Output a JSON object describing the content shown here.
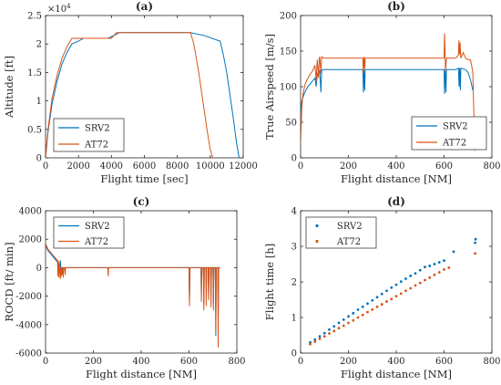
{
  "colors": {
    "SRV2": "#0072BD",
    "AT72": "#D95319"
  },
  "chart_data": [
    {
      "panel": "(a)",
      "type": "line",
      "xlabel": "Flight time [sec]",
      "ylabel": "Altitude [ft]",
      "exponent_label": "×10",
      "exponent_power": "4",
      "xlim": [
        0,
        12000
      ],
      "ylim": [
        0,
        2.5
      ],
      "xticks": [
        "0",
        "2000",
        "4000",
        "6000",
        "8000",
        "10000",
        "12000"
      ],
      "yticks": [
        "0",
        "0.5",
        "1",
        "1.5",
        "2",
        "2.5"
      ],
      "legend": [
        "SRV2",
        "AT72"
      ],
      "legend_position": "bottom-left",
      "series": [
        {
          "name": "SRV2",
          "x": [
            0,
            150,
            400,
            700,
            1000,
            1300,
            1600,
            2000,
            2300,
            3800,
            4500,
            8800,
            9600,
            10600,
            10800,
            11000,
            11200,
            11400,
            11600,
            11750
          ],
          "y": [
            0,
            0.45,
            0.95,
            1.35,
            1.65,
            1.85,
            2.0,
            2.05,
            2.1,
            2.1,
            2.2,
            2.2,
            2.15,
            2.05,
            1.8,
            1.5,
            1.1,
            0.7,
            0.25,
            0
          ]
        },
        {
          "name": "AT72",
          "x": [
            0,
            150,
            400,
            700,
            1000,
            1300,
            1600,
            2000,
            4000,
            4300,
            8800,
            9000,
            9300,
            9600,
            9800,
            10000,
            10150
          ],
          "y": [
            0,
            0.5,
            1.05,
            1.45,
            1.75,
            1.95,
            2.1,
            2.1,
            2.1,
            2.2,
            2.2,
            2.0,
            1.5,
            0.9,
            0.5,
            0.15,
            0
          ]
        }
      ]
    },
    {
      "panel": "(b)",
      "type": "line",
      "xlabel": "Flight distance [NM]",
      "ylabel": "True Airspeed [m/s]",
      "xlim": [
        0,
        800
      ],
      "ylim": [
        0,
        200
      ],
      "xticks": [
        "0",
        "200",
        "400",
        "600",
        "800"
      ],
      "yticks": [
        "0",
        "50",
        "100",
        "150",
        "200"
      ],
      "legend": [
        "SRV2",
        "AT72"
      ],
      "legend_position": "bottom-right",
      "series": [
        {
          "name": "SRV2",
          "x": [
            0,
            5,
            15,
            30,
            50,
            60,
            65,
            68,
            70,
            80,
            85,
            88,
            92,
            100,
            260,
            263,
            265,
            268,
            270,
            600,
            602,
            605,
            608,
            610,
            650,
            660,
            663,
            665,
            668,
            670,
            690,
            700,
            710,
            720
          ],
          "y": [
            60,
            80,
            90,
            100,
            108,
            112,
            100,
            112,
            118,
            122,
            92,
            122,
            124,
            124,
            124,
            92,
            124,
            95,
            124,
            124,
            90,
            124,
            92,
            124,
            124,
            126,
            100,
            126,
            95,
            126,
            124,
            120,
            110,
            95
          ]
        },
        {
          "name": "AT72",
          "x": [
            0,
            5,
            10,
            20,
            35,
            50,
            60,
            65,
            68,
            70,
            75,
            78,
            80,
            85,
            88,
            90,
            95,
            100,
            260,
            262,
            265,
            268,
            270,
            600,
            602,
            604,
            606,
            610,
            650,
            660,
            662,
            665,
            667,
            670,
            680,
            690,
            700,
            710,
            715,
            720,
            725,
            730
          ],
          "y": [
            20,
            70,
            90,
            105,
            115,
            122,
            130,
            108,
            130,
            138,
            112,
            140,
            142,
            118,
            142,
            142,
            140,
            140,
            140,
            118,
            142,
            125,
            140,
            140,
            175,
            150,
            120,
            140,
            140,
            145,
            165,
            145,
            162,
            140,
            148,
            140,
            138,
            138,
            130,
            120,
            60,
            10
          ]
        }
      ]
    },
    {
      "panel": "(c)",
      "type": "line",
      "xlabel": "Flight distance [NM]",
      "ylabel": "ROCD [ft/ min]",
      "xlim": [
        0,
        800
      ],
      "ylim": [
        -6000,
        4000
      ],
      "xticks": [
        "0",
        "200",
        "400",
        "600",
        "800"
      ],
      "yticks": [
        "-6000",
        "-4000",
        "-2000",
        "0",
        "2000",
        "4000"
      ],
      "legend": [
        "SRV2",
        "AT72"
      ],
      "legend_position": "top-left",
      "series": [
        {
          "name": "SRV2",
          "x": [
            0,
            5,
            10,
            20,
            30,
            40,
            50,
            60,
            62,
            64,
            66,
            70,
            600,
            602,
            604,
            650,
            652,
            654,
            660,
            662,
            664,
            670,
            672,
            674,
            680,
            682,
            684,
            690,
            692,
            694,
            700,
            702,
            704,
            710,
            712,
            714,
            720,
            722,
            724,
            730
          ],
          "y": [
            1500,
            1400,
            1200,
            1000,
            800,
            600,
            400,
            200,
            500,
            0,
            0,
            0,
            0,
            -2400,
            0,
            0,
            -1800,
            0,
            0,
            -2600,
            0,
            0,
            -1500,
            0,
            0,
            -2200,
            0,
            0,
            -1600,
            0,
            0,
            -2500,
            0,
            0,
            -4800,
            0,
            0,
            -2400,
            0,
            0
          ]
        },
        {
          "name": "AT72",
          "x": [
            0,
            5,
            10,
            20,
            30,
            40,
            50,
            52,
            54,
            56,
            58,
            60,
            62,
            64,
            66,
            68,
            70,
            72,
            74,
            76,
            80,
            82,
            84,
            100,
            260,
            262,
            264,
            266,
            600,
            602,
            604,
            606,
            650,
            652,
            654,
            660,
            662,
            664,
            670,
            672,
            674,
            680,
            682,
            684,
            690,
            692,
            694,
            700,
            702,
            704,
            710,
            712,
            714,
            720,
            722,
            724,
            726,
            730
          ],
          "y": [
            1700,
            1500,
            1300,
            1100,
            900,
            700,
            500,
            -600,
            500,
            -700,
            300,
            0,
            -800,
            0,
            -600,
            0,
            -500,
            0,
            -700,
            0,
            0,
            -500,
            0,
            0,
            0,
            -600,
            0,
            0,
            0,
            -2700,
            0,
            0,
            0,
            -2400,
            0,
            0,
            -3000,
            0,
            0,
            -2700,
            0,
            0,
            -2300,
            0,
            0,
            -2800,
            0,
            0,
            -3000,
            0,
            0,
            -4500,
            0,
            0,
            -5600,
            0,
            0,
            0
          ]
        }
      ]
    },
    {
      "panel": "(d)",
      "type": "scatter",
      "xlabel": "Flight distance [NM]",
      "ylabel": "Flight time [h]",
      "xlim": [
        0,
        800
      ],
      "ylim": [
        0,
        4
      ],
      "xticks": [
        "0",
        "200",
        "400",
        "600",
        "800"
      ],
      "yticks": [
        "0",
        "1",
        "2",
        "3",
        "4"
      ],
      "legend": [
        "SRV2",
        "AT72"
      ],
      "legend_position": "top-left",
      "series": [
        {
          "name": "SRV2",
          "x": [
            40,
            60,
            80,
            100,
            120,
            140,
            160,
            180,
            200,
            220,
            240,
            260,
            280,
            300,
            320,
            340,
            360,
            380,
            400,
            420,
            440,
            460,
            480,
            500,
            520,
            540,
            560,
            580,
            600,
            640,
            730,
            732
          ],
          "y": [
            0.3,
            0.38,
            0.47,
            0.56,
            0.66,
            0.75,
            0.85,
            0.94,
            1.03,
            1.12,
            1.22,
            1.3,
            1.39,
            1.48,
            1.57,
            1.66,
            1.75,
            1.84,
            1.92,
            2.01,
            2.09,
            2.17,
            2.24,
            2.33,
            2.42,
            2.45,
            2.5,
            2.55,
            2.6,
            2.85,
            3.1,
            3.2
          ]
        },
        {
          "name": "AT72",
          "x": [
            40,
            60,
            80,
            100,
            120,
            140,
            160,
            180,
            200,
            220,
            240,
            260,
            280,
            300,
            320,
            340,
            360,
            380,
            400,
            420,
            440,
            460,
            480,
            500,
            520,
            540,
            560,
            580,
            600,
            620,
            730
          ],
          "y": [
            0.25,
            0.32,
            0.4,
            0.47,
            0.55,
            0.62,
            0.7,
            0.77,
            0.85,
            0.92,
            1.0,
            1.07,
            1.15,
            1.22,
            1.3,
            1.37,
            1.45,
            1.52,
            1.6,
            1.67,
            1.75,
            1.82,
            1.9,
            1.97,
            2.05,
            2.12,
            2.2,
            2.27,
            2.35,
            2.4,
            2.8
          ]
        }
      ]
    }
  ]
}
